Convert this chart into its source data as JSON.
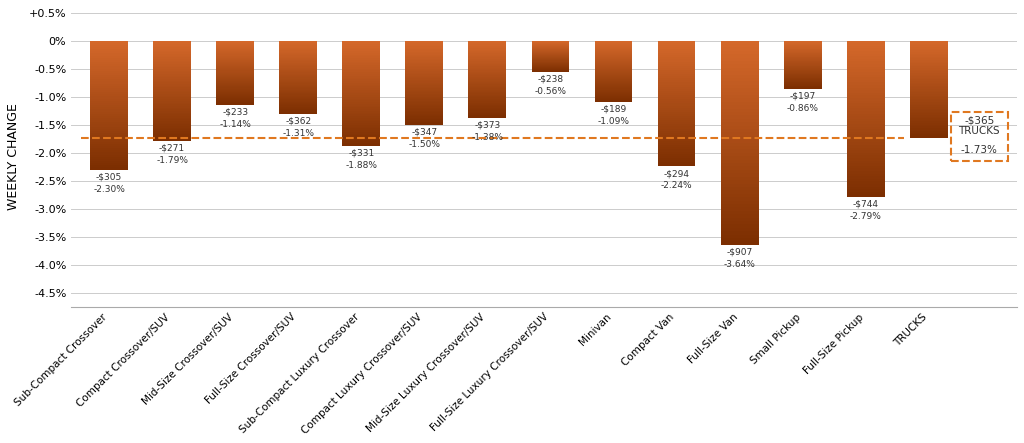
{
  "categories": [
    "Sub-Compact Crossover",
    "Compact Crossover/SUV",
    "Mid-Size Crossover/SUV",
    "Full-Size Crossover/SUV",
    "Sub-Compact Luxury Crossover",
    "Compact Luxury Crossover/SUV",
    "Mid-Size Luxury Crossover/SUV",
    "Full-Size Luxury Crossover/SUV",
    "Minivan",
    "Compact Van",
    "Full-Size Van",
    "Small Pickup",
    "Full-Size Pickup",
    "TRUCKS"
  ],
  "pct_values": [
    -2.3,
    -1.79,
    -1.14,
    -1.31,
    -1.88,
    -1.5,
    -1.38,
    -0.56,
    -1.09,
    -2.24,
    -3.64,
    -0.86,
    -2.79,
    -1.73
  ],
  "dollar_values": [
    "-$305",
    "-$271",
    "-$233",
    "-$362",
    "-$331",
    "-$347",
    "-$373",
    "-$238",
    "-$189",
    "-$294",
    "-$907",
    "-$197",
    "-$744",
    "-$365"
  ],
  "pct_labels": [
    "-2.30%",
    "-1.79%",
    "-1.14%",
    "-1.31%",
    "-1.88%",
    "-1.50%",
    "-1.38%",
    "-0.56%",
    "-1.09%",
    "-2.24%",
    "-3.64%",
    "-0.86%",
    "-2.79%",
    "-1.73%"
  ],
  "avg_line": -1.73,
  "ylim": [
    -4.75,
    0.6
  ],
  "yticks": [
    0.5,
    0.0,
    -0.5,
    -1.0,
    -1.5,
    -2.0,
    -2.5,
    -3.0,
    -3.5,
    -4.0,
    -4.5
  ],
  "ytick_labels": [
    "+0.5%",
    "0%",
    "-0.5%",
    "-1.0%",
    "-1.5%",
    "-2.0%",
    "-2.5%",
    "-3.0%",
    "-3.5%",
    "-4.0%",
    "-4.5%"
  ],
  "bar_top_color": "#d4682a",
  "bar_bottom_color": "#7a2d00",
  "trucks_box_color": "#e07820",
  "avg_line_color": "#e07820",
  "ylabel": "WEEKLY CHANGE",
  "background_color": "#ffffff",
  "grid_color": "#cccccc"
}
